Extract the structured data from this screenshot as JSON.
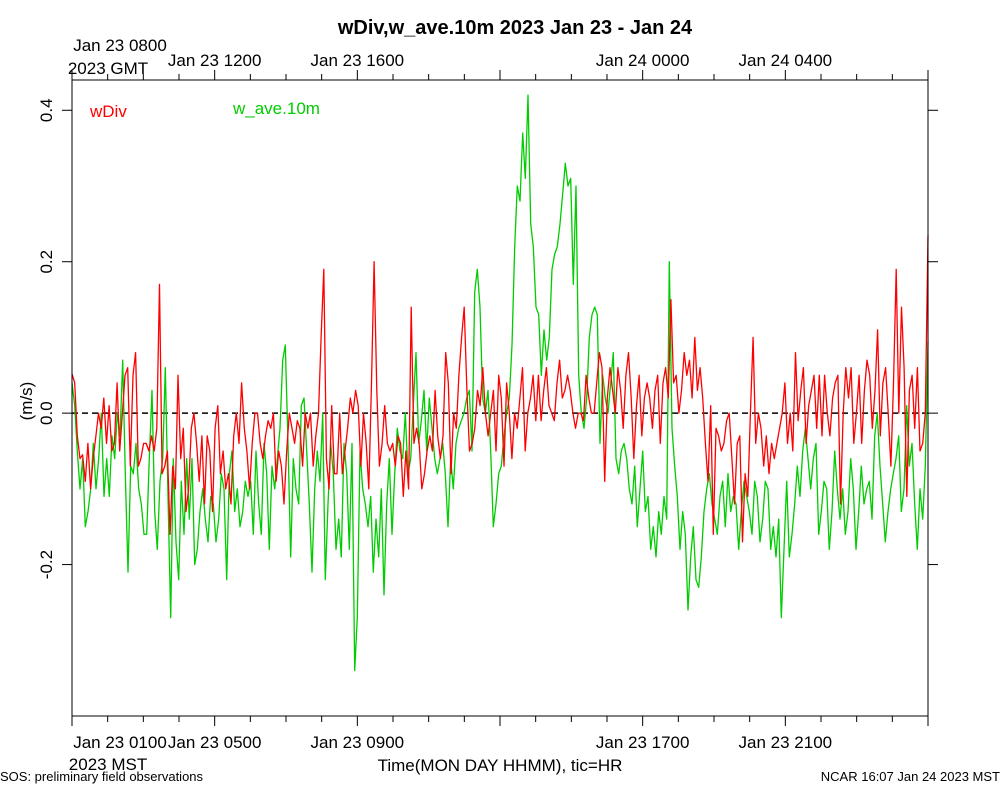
{
  "chart_data": {
    "type": "line",
    "title": "wDiv,w_ave.10m 2023 Jan 23 - Jan 24",
    "xlabel": "Time(MON DAY HHMM), tic=HR",
    "ylabel": "(m/s)",
    "ylim": [
      -0.4,
      0.44
    ],
    "yticks": [
      -0.2,
      0.0,
      0.2,
      0.4
    ],
    "ytick_labels": [
      "-0.2",
      "0.0",
      "0.2",
      "0.4"
    ],
    "xlim_hours": [
      0,
      24
    ],
    "top_axis": {
      "corner_label_line1": "Jan 23 0800",
      "corner_label_line2": "2023 GMT",
      "major_ticks": [
        {
          "hour": 4,
          "label": "Jan 23 1200"
        },
        {
          "hour": 8,
          "label": "Jan 23 1600"
        },
        {
          "hour": 16,
          "label": "Jan 24 0000"
        },
        {
          "hour": 20,
          "label": "Jan 24 0400"
        }
      ]
    },
    "bottom_axis": {
      "corner_label_line1": "Jan 23 0100",
      "corner_label_line2": "2023 MST",
      "major_ticks": [
        {
          "hour": 4,
          "label": "Jan 23 0500"
        },
        {
          "hour": 8,
          "label": "Jan 23 0900"
        },
        {
          "hour": 16,
          "label": "Jan 23 1700"
        },
        {
          "hour": 20,
          "label": "Jan 23 2100"
        }
      ]
    },
    "zero_line": true,
    "series": [
      {
        "name": "wDiv",
        "color": "#ff0000",
        "values": [
          0.052,
          0.04,
          -0.03,
          -0.06,
          -0.055,
          -0.09,
          -0.04,
          -0.1,
          -0.06,
          -0.03,
          0.0,
          -0.02,
          0.02,
          -0.04,
          0.01,
          -0.05,
          -0.04,
          0.04,
          -0.05,
          0.0,
          0.05,
          0.06,
          -0.07,
          0.05,
          0.08,
          -0.07,
          -0.06,
          -0.04,
          -0.04,
          -0.05,
          -0.03,
          -0.05,
          -0.02,
          0.17,
          -0.08,
          -0.07,
          -0.05,
          -0.16,
          -0.07,
          -0.1,
          0.05,
          -0.06,
          -0.02,
          -0.13,
          -0.1,
          -0.02,
          0.0,
          -0.04,
          -0.09,
          -0.03,
          -0.12,
          -0.03,
          -0.05,
          -0.13,
          -0.02,
          0.01,
          -0.08,
          -0.05,
          -0.1,
          -0.08,
          -0.12,
          -0.03,
          0.0,
          -0.04,
          0.04,
          -0.02,
          -0.05,
          -0.1,
          -0.04,
          0.0,
          0.0,
          -0.04,
          -0.06,
          -0.03,
          -0.01,
          -0.02,
          0.0,
          -0.09,
          -0.05,
          -0.07,
          -0.12,
          -0.05,
          0.0,
          -0.02,
          -0.04,
          -0.01,
          -0.02,
          -0.07,
          0.0,
          -0.02,
          0.0,
          -0.07,
          -0.03,
          0.0,
          0.1,
          0.19,
          -0.06,
          -0.1,
          0.01,
          -0.08,
          -0.08,
          0.0,
          -0.08,
          -0.05,
          -0.02,
          0.02,
          0.0,
          0.03,
          0.01,
          -0.07,
          0.0,
          -0.04,
          -0.1,
          0.04,
          0.2,
          0.03,
          -0.07,
          -0.04,
          0.01,
          -0.04,
          -0.05,
          -0.04,
          -0.07,
          -0.03,
          -0.04,
          -0.11,
          -0.05,
          -0.1,
          0.14,
          -0.04,
          -0.02,
          -0.04,
          -0.1,
          -0.08,
          -0.05,
          -0.03,
          -0.05,
          0.03,
          -0.03,
          -0.06,
          -0.03,
          0.08,
          0.04,
          -0.08,
          0.0,
          -0.02,
          0.05,
          0.1,
          0.14,
          0.03,
          -0.05,
          -0.04,
          -0.02,
          0.03,
          0.01,
          0.06,
          0.0,
          -0.03,
          0.0,
          0.03,
          -0.05,
          0.05,
          0.02,
          -0.07,
          0.04,
          0.0,
          -0.06,
          0.0,
          -0.02,
          0.02,
          0.06,
          -0.05,
          0.0,
          0.02,
          0.05,
          -0.01,
          0.05,
          -0.01,
          0.03,
          0.06,
          0.01,
          0.0,
          -0.01,
          0.04,
          0.07,
          0.02,
          0.03,
          0.05,
          0.03,
          0.0,
          -0.02,
          0.0,
          0.0,
          -0.01,
          0.05,
          0.02,
          0.0,
          0.0,
          0.04,
          0.08,
          0.06,
          -0.09,
          0.02,
          0.06,
          0.03,
          0.0,
          0.06,
          0.03,
          -0.02,
          0.05,
          0.08,
          0.02,
          -0.06,
          0.01,
          0.05,
          -0.03,
          0.02,
          0.04,
          0.02,
          -0.02,
          0.03,
          0.05,
          -0.04,
          0.04,
          0.06,
          0.02,
          0.15,
          0.04,
          0.05,
          0.0,
          0.03,
          0.08,
          0.05,
          0.07,
          0.02,
          0.1,
          0.03,
          0.06,
          0.02,
          -0.04,
          -0.09,
          0.01,
          -0.16,
          -0.02,
          -0.03,
          -0.05,
          -0.04,
          -0.01,
          0.0,
          -0.06,
          -0.12,
          -0.04,
          -0.03,
          -0.17,
          -0.08,
          -0.11,
          0.0,
          0.1,
          -0.04,
          0.0,
          -0.02,
          -0.07,
          -0.03,
          -0.08,
          -0.04,
          -0.06,
          -0.04,
          -0.02,
          0.0,
          0.04,
          -0.04,
          0.0,
          -0.05,
          0.08,
          -0.01,
          0.03,
          0.06,
          -0.04,
          0.01,
          0.03,
          0.05,
          -0.02,
          0.05,
          -0.03,
          0.05,
          0.0,
          -0.03,
          0.02,
          0.04,
          0.05,
          -0.12,
          0.0,
          0.06,
          0.02,
          0.06,
          -0.04,
          0.0,
          0.05,
          -0.04,
          0.03,
          0.07,
          0.05,
          -0.02,
          0.03,
          0.11,
          -0.03,
          0.04,
          0.06,
          0.0,
          -0.07,
          0.04,
          0.19,
          0.0,
          0.14,
          0.06,
          -0.11,
          0.03,
          0.05,
          -0.02,
          0.06,
          -0.05,
          -0.04,
          0.0,
          0.235
        ]
      },
      {
        "name": "w_ave.10m",
        "color": "#00cc00",
        "values": [
          0.04,
          0.01,
          -0.05,
          -0.1,
          -0.06,
          -0.15,
          -0.13,
          -0.1,
          -0.04,
          -0.1,
          -0.06,
          0.0,
          -0.11,
          -0.06,
          -0.11,
          -0.03,
          -0.06,
          0.0,
          -0.03,
          0.07,
          -0.08,
          -0.21,
          -0.07,
          -0.08,
          -0.04,
          -0.1,
          -0.12,
          -0.16,
          -0.16,
          -0.06,
          0.03,
          -0.13,
          -0.18,
          -0.09,
          -0.06,
          0.06,
          -0.11,
          -0.27,
          -0.06,
          -0.17,
          -0.22,
          -0.09,
          -0.16,
          -0.06,
          -0.14,
          -0.06,
          -0.2,
          -0.18,
          -0.13,
          -0.1,
          -0.14,
          -0.17,
          -0.11,
          -0.12,
          -0.17,
          -0.14,
          -0.08,
          -0.1,
          -0.22,
          -0.08,
          -0.05,
          -0.13,
          -0.1,
          -0.15,
          -0.13,
          -0.09,
          -0.11,
          -0.09,
          -0.16,
          -0.05,
          -0.12,
          -0.16,
          -0.04,
          -0.08,
          -0.18,
          -0.07,
          -0.1,
          -0.06,
          -0.02,
          0.07,
          0.09,
          -0.04,
          -0.19,
          -0.06,
          -0.1,
          -0.12,
          0.01,
          0.02,
          -0.05,
          -0.12,
          -0.21,
          -0.1,
          -0.05,
          -0.09,
          0.0,
          -0.22,
          -0.12,
          -0.04,
          -0.08,
          -0.18,
          -0.14,
          -0.19,
          -0.04,
          -0.08,
          -0.18,
          -0.04,
          -0.34,
          -0.27,
          -0.05,
          -0.1,
          -0.12,
          -0.15,
          -0.11,
          -0.21,
          -0.14,
          -0.19,
          -0.1,
          -0.24,
          -0.12,
          -0.06,
          -0.16,
          -0.08,
          -0.02,
          -0.05,
          -0.06,
          0.0,
          -0.08,
          -0.06,
          0.01,
          0.08,
          -0.04,
          -0.01,
          0.03,
          -0.05,
          0.02,
          -0.02,
          -0.06,
          -0.08,
          -0.06,
          -0.04,
          -0.08,
          -0.15,
          -0.06,
          -0.1,
          -0.04,
          -0.02,
          -0.01,
          0.0,
          0.02,
          0.03,
          -0.05,
          0.16,
          0.19,
          0.14,
          0.02,
          0.0,
          0.03,
          -0.05,
          -0.15,
          -0.12,
          -0.08,
          -0.07,
          -0.03,
          0.0,
          0.02,
          0.09,
          0.22,
          0.3,
          0.28,
          0.37,
          0.31,
          0.42,
          0.25,
          0.22,
          0.14,
          0.13,
          0.05,
          0.11,
          0.07,
          0.1,
          0.19,
          0.21,
          0.22,
          0.25,
          0.29,
          0.33,
          0.3,
          0.31,
          0.17,
          0.3,
          0.05,
          0.0,
          -0.02,
          0.02,
          0.1,
          0.13,
          0.14,
          0.13,
          -0.04,
          0.05,
          0.02,
          0.0,
          0.04,
          0.08,
          -0.06,
          -0.08,
          -0.05,
          -0.04,
          -0.06,
          -0.1,
          -0.12,
          -0.07,
          -0.15,
          -0.1,
          -0.05,
          -0.13,
          -0.11,
          -0.18,
          -0.15,
          -0.19,
          -0.13,
          -0.16,
          -0.11,
          -0.14,
          0.2,
          -0.02,
          -0.07,
          -0.11,
          -0.18,
          -0.13,
          -0.16,
          -0.26,
          -0.19,
          -0.15,
          -0.22,
          -0.23,
          -0.19,
          -0.13,
          -0.1,
          -0.08,
          -0.12,
          -0.14,
          -0.16,
          -0.11,
          -0.09,
          -0.15,
          -0.08,
          -0.13,
          -0.11,
          -0.12,
          -0.18,
          -0.13,
          -0.09,
          -0.11,
          -0.13,
          -0.16,
          -0.09,
          -0.11,
          -0.17,
          -0.14,
          -0.09,
          -0.1,
          -0.18,
          -0.15,
          -0.19,
          -0.14,
          -0.27,
          -0.18,
          -0.09,
          -0.19,
          -0.16,
          -0.12,
          -0.07,
          -0.11,
          -0.05,
          -0.02,
          -0.06,
          -0.1,
          -0.06,
          -0.04,
          -0.16,
          -0.13,
          -0.09,
          -0.1,
          -0.18,
          -0.13,
          -0.05,
          -0.1,
          -0.14,
          -0.1,
          -0.16,
          -0.13,
          -0.06,
          -0.1,
          -0.18,
          -0.13,
          -0.07,
          -0.12,
          -0.1,
          -0.09,
          -0.14,
          -0.03,
          0.0,
          -0.07,
          -0.12,
          -0.17,
          -0.13,
          -0.1,
          -0.08,
          -0.06,
          -0.03,
          -0.13,
          -0.1,
          0.01,
          -0.07,
          -0.04,
          -0.12,
          -0.18,
          -0.1,
          -0.14,
          -0.07,
          0.095
        ]
      }
    ],
    "footer_left": "SOS: preliminary field observations",
    "footer_right": "NCAR 16:07 Jan 24 2023 MST"
  }
}
